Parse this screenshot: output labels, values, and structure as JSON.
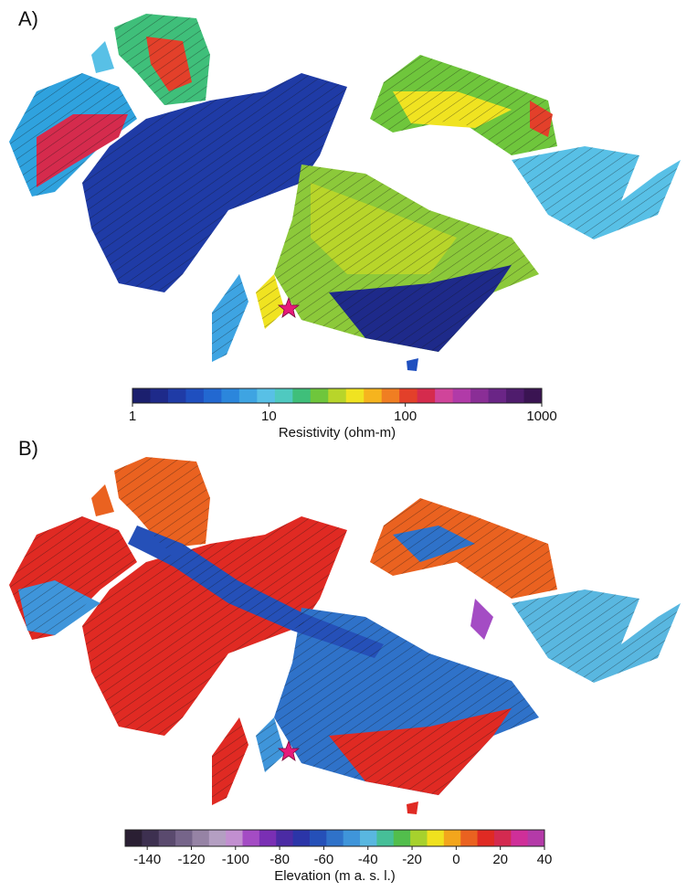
{
  "panels": [
    {
      "label": "A)",
      "colorbar": {
        "scale": "log",
        "lim": [
          1,
          1000
        ],
        "ticks": [
          1,
          10,
          100,
          1000
        ],
        "label": "Resistivity (ohm-m)",
        "colors": [
          "#1b1f6e",
          "#1e2a8a",
          "#1f3ba6",
          "#1f4fbf",
          "#2268d1",
          "#2b86dc",
          "#3ea4e2",
          "#58c0e6",
          "#4fc9c0",
          "#3fbf7a",
          "#6fc63c",
          "#b8d52a",
          "#f0e321",
          "#f6b41e",
          "#f07e22",
          "#e3402a",
          "#d52b4d",
          "#d0449a",
          "#b13aa8",
          "#8a2e96",
          "#6a2586",
          "#4f1c6d",
          "#3a1452"
        ]
      }
    },
    {
      "label": "B)",
      "colorbar": {
        "scale": "linear",
        "lim": [
          -150,
          40
        ],
        "ticks": [
          -140,
          -120,
          -100,
          -80,
          -60,
          -40,
          -20,
          0,
          20,
          40
        ],
        "label": "Elevation (m a. s. l.)",
        "colors": [
          "#2a1f33",
          "#3d3050",
          "#5a4a6e",
          "#76658a",
          "#9683a5",
          "#b49fc2",
          "#c28fd0",
          "#a44cc4",
          "#7a2fb4",
          "#4b2ba4",
          "#2b35a8",
          "#2550b8",
          "#2f72c9",
          "#3f95da",
          "#59b7e0",
          "#46bf98",
          "#52be4c",
          "#a7d12d",
          "#f0e11e",
          "#f3a61c",
          "#ea6220",
          "#e02a23",
          "#d42a50",
          "#cf2f99",
          "#b43aa8"
        ]
      }
    }
  ]
}
